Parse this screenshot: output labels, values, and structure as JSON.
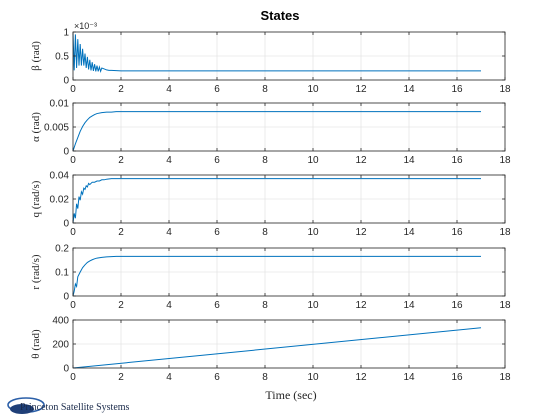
{
  "figure": {
    "title": "States",
    "xlabel": "Time (sec)",
    "logo_text": "Princeton Satellite Systems",
    "line_color": "#0072bd",
    "grid_color": "#e6e6e6",
    "axis_color": "#262626"
  },
  "chart_data": [
    {
      "type": "line",
      "ylabel": "β (rad)",
      "ylabel_italic_symbol": true,
      "exponent_label": "×10⁻³",
      "xlim": [
        0,
        18
      ],
      "ylim": [
        0,
        0.001
      ],
      "xticks": [
        0,
        2,
        4,
        6,
        8,
        10,
        12,
        14,
        16,
        18
      ],
      "yticks": [
        0,
        0.0005,
        0.001
      ],
      "ytick_labels": [
        "0",
        "0.5",
        "1"
      ],
      "grid": true,
      "series": [
        {
          "x": [
            0,
            0.05,
            0.1,
            0.15,
            0.2,
            0.25,
            0.3,
            0.35,
            0.4,
            0.45,
            0.5,
            0.55,
            0.6,
            0.65,
            0.7,
            0.75,
            0.8,
            0.85,
            0.9,
            0.95,
            1.0,
            1.05,
            1.1,
            1.15,
            1.2,
            1.3,
            1.4,
            1.5,
            1.6,
            1.8,
            2.0,
            2.5,
            17
          ],
          "y": [
            0.00098,
            0.0002,
            0.00095,
            0.00025,
            0.00085,
            0.0003,
            0.00075,
            0.0003,
            0.00065,
            0.0003,
            0.00055,
            0.00025,
            0.00048,
            0.00022,
            0.00042,
            0.0002,
            0.00037,
            0.00019,
            0.00033,
            0.00018,
            0.0003,
            0.00018,
            0.00027,
            0.00018,
            0.00025,
            0.00023,
            0.00021,
            0.0002,
            0.0002,
            0.000195,
            0.00019,
            0.00019,
            0.00019
          ]
        }
      ]
    },
    {
      "type": "line",
      "ylabel": "α (rad)",
      "xlim": [
        0,
        18
      ],
      "ylim": [
        0,
        0.01
      ],
      "xticks": [
        0,
        2,
        4,
        6,
        8,
        10,
        12,
        14,
        16,
        18
      ],
      "yticks": [
        0,
        0.005,
        0.01
      ],
      "ytick_labels": [
        "0",
        "0.005",
        "0.01"
      ],
      "grid": true,
      "series": [
        {
          "x": [
            0,
            0.1,
            0.2,
            0.3,
            0.4,
            0.5,
            0.6,
            0.7,
            0.8,
            0.9,
            1.0,
            1.2,
            1.4,
            1.6,
            1.8,
            2.0,
            2.5,
            3,
            17
          ],
          "y": [
            0,
            0.0015,
            0.0028,
            0.0041,
            0.0051,
            0.0059,
            0.0065,
            0.007,
            0.0073,
            0.0076,
            0.0078,
            0.008,
            0.0081,
            0.0081,
            0.0082,
            0.0082,
            0.0082,
            0.0082,
            0.0082
          ]
        }
      ]
    },
    {
      "type": "line",
      "ylabel": "q (rad/s)",
      "xlim": [
        0,
        18
      ],
      "ylim": [
        0,
        0.04
      ],
      "xticks": [
        0,
        2,
        4,
        6,
        8,
        10,
        12,
        14,
        16,
        18
      ],
      "yticks": [
        0,
        0.02,
        0.04
      ],
      "ytick_labels": [
        "0",
        "0.02",
        "0.04"
      ],
      "grid": true,
      "series": [
        {
          "x": [
            0,
            0.05,
            0.1,
            0.15,
            0.2,
            0.25,
            0.3,
            0.35,
            0.4,
            0.45,
            0.5,
            0.55,
            0.6,
            0.65,
            0.7,
            0.8,
            0.9,
            1.0,
            1.1,
            1.2,
            1.3,
            1.4,
            1.6,
            1.8,
            2.0,
            2.5,
            17
          ],
          "y": [
            0,
            0.008,
            0.004,
            0.016,
            0.012,
            0.022,
            0.019,
            0.026,
            0.024,
            0.029,
            0.028,
            0.031,
            0.03,
            0.033,
            0.032,
            0.034,
            0.034,
            0.035,
            0.035,
            0.036,
            0.036,
            0.0365,
            0.037,
            0.037,
            0.037,
            0.037,
            0.037
          ]
        }
      ]
    },
    {
      "type": "line",
      "ylabel": "r (rad/s)",
      "xlim": [
        0,
        18
      ],
      "ylim": [
        0,
        0.2
      ],
      "xticks": [
        0,
        2,
        4,
        6,
        8,
        10,
        12,
        14,
        16,
        18
      ],
      "yticks": [
        0,
        0.1,
        0.2
      ],
      "ytick_labels": [
        "0",
        "0.1",
        "0.2"
      ],
      "grid": true,
      "series": [
        {
          "x": [
            0,
            0.05,
            0.1,
            0.15,
            0.2,
            0.3,
            0.4,
            0.5,
            0.6,
            0.7,
            0.8,
            0.9,
            1.0,
            1.2,
            1.4,
            1.6,
            1.8,
            2.0,
            2.5,
            17
          ],
          "y": [
            0,
            0.02,
            0.05,
            0.04,
            0.08,
            0.1,
            0.118,
            0.13,
            0.14,
            0.146,
            0.151,
            0.155,
            0.158,
            0.161,
            0.163,
            0.164,
            0.165,
            0.165,
            0.165,
            0.165
          ]
        }
      ]
    },
    {
      "type": "line",
      "ylabel": "θ (rad)",
      "xlabel_shown": true,
      "xlim": [
        0,
        18
      ],
      "ylim": [
        0,
        400
      ],
      "xticks": [
        0,
        2,
        4,
        6,
        8,
        10,
        12,
        14,
        16,
        18
      ],
      "yticks": [
        0,
        200,
        400
      ],
      "ytick_labels": [
        "0",
        "200",
        "400"
      ],
      "grid": true,
      "series": [
        {
          "x": [
            0,
            17
          ],
          "y": [
            0,
            335
          ]
        }
      ]
    }
  ]
}
